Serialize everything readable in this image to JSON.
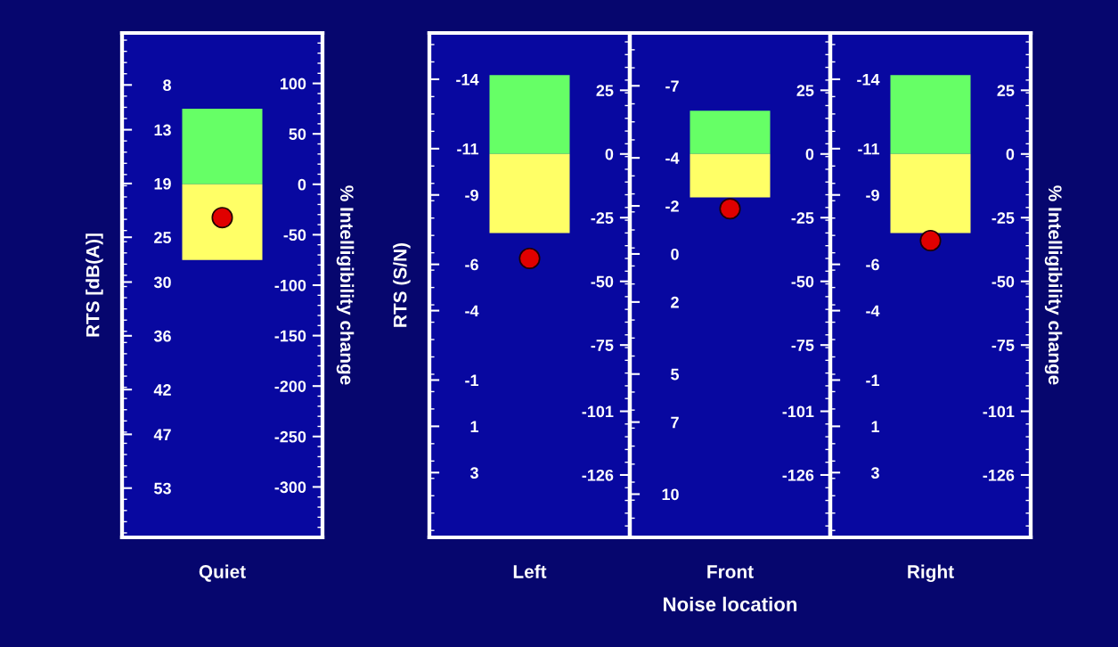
{
  "chart_data": [
    {
      "type": "bar",
      "categories": [
        "Quiet"
      ],
      "stacked": true,
      "ylabel": "RTS [dB(A)]",
      "y2label": "% Intelligibility change",
      "ylim": [
        58.5,
        2.2
      ],
      "yticks": [
        8,
        13,
        19,
        25,
        30,
        36,
        42,
        47,
        53
      ],
      "y2lim": [
        -350,
        150
      ],
      "y2ticks": [
        100,
        50,
        0,
        -50,
        -100,
        -150,
        -200,
        -250,
        -300
      ],
      "series": [
        {
          "color": "#66ff66",
          "values": [
            75
          ],
          "axis": "y2"
        },
        {
          "color": "#ffff66",
          "values": [
            -75
          ],
          "axis": "y2"
        },
        {
          "type": "scatter",
          "color": "#e00000",
          "values": [
            -33
          ],
          "axis": "y2",
          "marker": "circle"
        }
      ]
    },
    {
      "type": "bar",
      "categories": [
        "Left"
      ],
      "stacked": true,
      "ylabel": "RTS (S/N)",
      "ylim": [
        5.8,
        -16.0
      ],
      "yticks": [
        -14,
        -11,
        -9,
        -6,
        -4,
        -1,
        1,
        3
      ],
      "y2lim": [
        -150.5,
        47.5
      ],
      "y2ticks": [
        25,
        0,
        -25,
        -50,
        -75,
        -101,
        -126
      ],
      "series": [
        {
          "color": "#66ff66",
          "values": [
            31
          ],
          "axis": "y2"
        },
        {
          "color": "#ffff66",
          "values": [
            -31
          ],
          "axis": "y2"
        },
        {
          "type": "scatter",
          "color": "#e00000",
          "values": [
            -41
          ],
          "axis": "y2",
          "marker": "circle"
        }
      ]
    },
    {
      "type": "bar",
      "categories": [
        "Front"
      ],
      "stacked": true,
      "xlabel": "Noise location",
      "ylim": [
        11.8,
        -9.2
      ],
      "yticks": [
        -7,
        -4,
        -2,
        0,
        2,
        5,
        7,
        10
      ],
      "y2lim": [
        -150.5,
        47.5
      ],
      "y2ticks": [
        25,
        0,
        -25,
        -50,
        -75,
        -101,
        -126
      ],
      "series": [
        {
          "color": "#66ff66",
          "values": [
            17
          ],
          "axis": "y2"
        },
        {
          "color": "#ffff66",
          "values": [
            -17
          ],
          "axis": "y2"
        },
        {
          "type": "scatter",
          "color": "#e00000",
          "values": [
            -21.5
          ],
          "axis": "y2",
          "marker": "circle"
        }
      ]
    },
    {
      "type": "bar",
      "categories": [
        "Right"
      ],
      "stacked": true,
      "y2label": "% Intelligibility change",
      "ylim": [
        5.8,
        -16.0
      ],
      "yticks": [
        -14,
        -11,
        -9,
        -6,
        -4,
        -1,
        1,
        3
      ],
      "y2lim": [
        -150.5,
        47.5
      ],
      "y2ticks": [
        25,
        0,
        -25,
        -50,
        -75,
        -101,
        -126
      ],
      "series": [
        {
          "color": "#66ff66",
          "values": [
            31
          ],
          "axis": "y2"
        },
        {
          "color": "#ffff66",
          "values": [
            -31
          ],
          "axis": "y2"
        },
        {
          "type": "scatter",
          "color": "#e00000",
          "values": [
            -34
          ],
          "axis": "y2",
          "marker": "circle"
        }
      ]
    }
  ]
}
